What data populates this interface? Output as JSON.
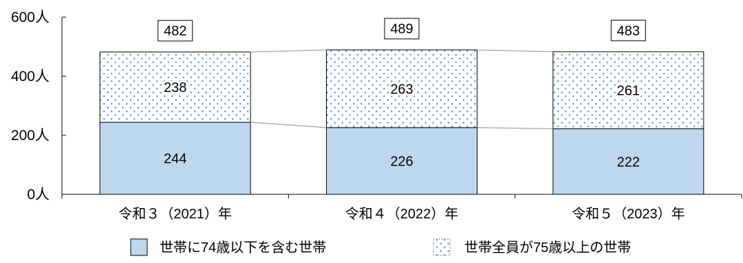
{
  "chart_data": {
    "type": "bar",
    "stacked": true,
    "categories": [
      "令和３（2021）年",
      "令和４（2022）年",
      "令和５（2023）年"
    ],
    "series": [
      {
        "name": "世帯に74歳以下を含む世帯",
        "values": [
          244,
          226,
          222
        ],
        "color": "#bdd7ee",
        "fill": "solid"
      },
      {
        "name": "世帯全員が75歳以上の世帯",
        "values": [
          238,
          263,
          261
        ],
        "color": "#4f8fd0",
        "fill": "dots"
      }
    ],
    "totals": [
      482,
      489,
      483
    ],
    "ylim": [
      0,
      600
    ],
    "yticks": [
      0,
      200,
      400,
      600
    ],
    "ytick_labels": [
      "0人",
      "200人",
      "400人",
      "600人"
    ],
    "grid": false,
    "legend": "bottom",
    "series_lines": true,
    "bar_border_color": "#000000",
    "series_line_color": "#a6a6a6",
    "axis_color": "#000000"
  }
}
